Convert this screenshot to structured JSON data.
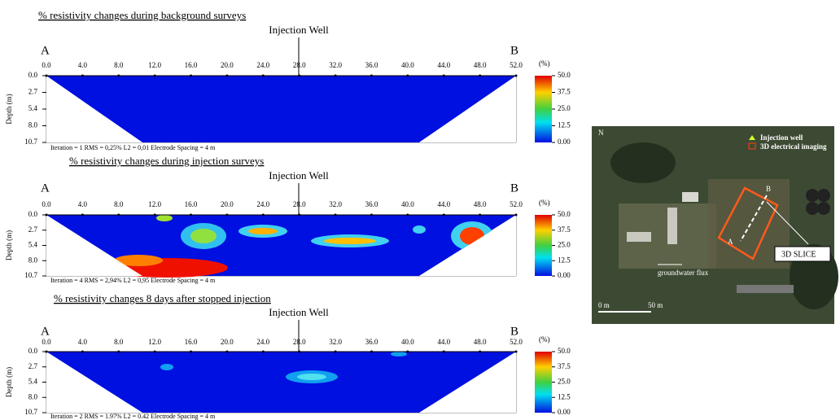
{
  "panels": [
    {
      "title": "% resistivity changes during background surveys",
      "well_label": "Injection Well",
      "a_label": "A",
      "b_label": "B",
      "stats": "Iteration = 1    RMS = 0,25%    L2 = 0,01     Electrode Spacing = 4 m"
    },
    {
      "title": "% resistivity changes during injection surveys",
      "well_label": "Injection Well",
      "a_label": "A",
      "b_label": "B",
      "stats": "Iteration = 4    RMS = 2,94%    L2 = 0,95      Electrode Spacing = 4 m"
    },
    {
      "title": "% resistivity changes 8 days after stopped injection",
      "well_label": "Injection Well",
      "a_label": "A",
      "b_label": "B",
      "stats": "Iteration = 2    RMS = 1.97%    L2 = 0.42     Electrode Spacing = 4 m"
    }
  ],
  "x_ticks": [
    "0.0",
    "4.0",
    "8.0",
    "12.0",
    "16.0",
    "20.0",
    "24.0",
    "28.0",
    "32.0",
    "36.0",
    "40.0",
    "44.0",
    "48.0",
    "52.0"
  ],
  "depth_ticks": [
    "0.0",
    "2.7",
    "5.4",
    "8.0",
    "10.7"
  ],
  "depth_axis_label": "Depth (m)",
  "colorbar": {
    "unit": "(%)",
    "ticks": [
      "50.0",
      "37.5",
      "25.0",
      "12.5",
      "0.00"
    ]
  },
  "map": {
    "north": "N",
    "legend_well": "Injection well",
    "legend_imaging": "3D electrical imaging",
    "a_label": "A",
    "b_label": "B",
    "slice_label": "3D SLICE",
    "flux_label": "groundwater flux",
    "scale_start": "0 m",
    "scale_end": "50 m"
  }
}
